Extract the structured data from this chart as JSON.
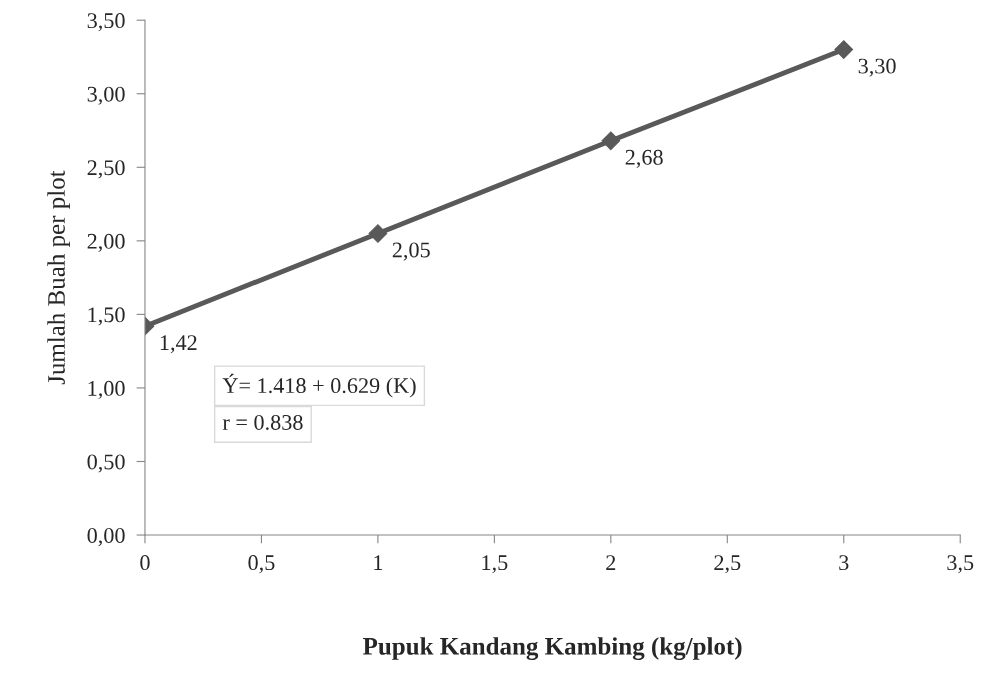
{
  "chart_data": {
    "type": "line",
    "xlabel": "Pupuk Kandang Kambing (kg/plot)",
    "ylabel": "Jumlah Buah per plot",
    "x": [
      0,
      1,
      2,
      3
    ],
    "series": [
      {
        "color": "#595959",
        "values": [
          1.42,
          2.05,
          2.68,
          3.3
        ],
        "value_labels": [
          "1,42",
          "2,05",
          "2,68",
          "3,30"
        ]
      }
    ],
    "xlim": [
      0,
      3.5
    ],
    "xticks": [
      0,
      {
        "value": 0.5,
        "label": "0,5"
      },
      1,
      {
        "value": 1.5,
        "label": "1,5"
      },
      2,
      {
        "value": 2.5,
        "label": "2,5"
      },
      3,
      {
        "value": 3.5,
        "label": "3,5"
      }
    ],
    "ylim": [
      0,
      3.5
    ],
    "yticks": [
      {
        "value": 0,
        "label": "0,00"
      },
      {
        "value": 0.5,
        "label": "0,50"
      },
      {
        "value": 1,
        "label": "1,00"
      },
      {
        "value": 1.5,
        "label": "1,50"
      },
      {
        "value": 2,
        "label": "2,00"
      },
      {
        "value": 2.5,
        "label": "2,50"
      },
      {
        "value": 3,
        "label": "3,00"
      },
      {
        "value": 3.5,
        "label": "3,50"
      }
    ],
    "annotations": [
      "Ý= 1.418 + 0.629 (K)",
      "r = 0.838"
    ],
    "marker": "diamond",
    "line_style": "solid",
    "grid": false
  }
}
